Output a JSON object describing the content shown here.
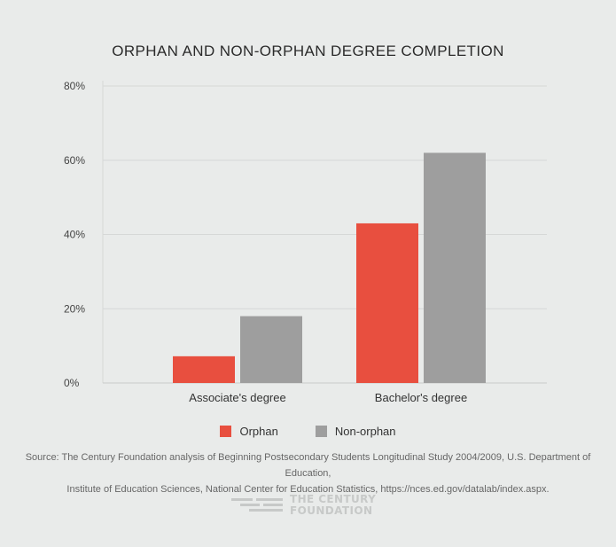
{
  "chart_data": {
    "type": "bar",
    "title": "ORPHAN AND NON-ORPHAN DEGREE COMPLETION",
    "categories": [
      "Associate's degree",
      "Bachelor's degree"
    ],
    "series": [
      {
        "name": "Orphan",
        "color": "#e84f3f",
        "values": [
          7.2,
          43.0
        ]
      },
      {
        "name": "Non-orphan",
        "color": "#9e9e9e",
        "values": [
          18.0,
          62.0
        ]
      }
    ],
    "yticks": [
      "0%",
      "20%",
      "40%",
      "60%",
      "80%"
    ],
    "ylim": [
      0,
      80
    ],
    "grid": true,
    "legend_position": "bottom"
  },
  "source": {
    "line1": "Source: The Century Foundation analysis of Beginning Postsecondary Students Longitudinal Study 2004/2009, U.S. Department of Education,",
    "line2": "Institute of Education Sciences, National Center for Education Statistics, https://nces.ed.gov/datalab/index.aspx."
  },
  "logo": {
    "line1": "THE CENTURY",
    "line2": "FOUNDATION"
  },
  "colors": {
    "background": "#e9ebea",
    "orphan": "#e84f3f",
    "non_orphan": "#9e9e9e"
  }
}
